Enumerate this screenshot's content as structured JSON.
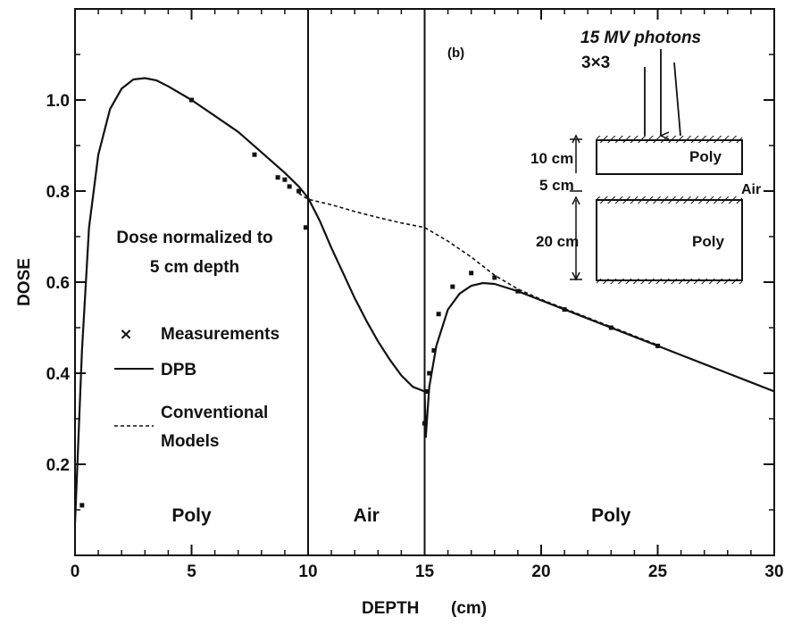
{
  "chart_data": {
    "type": "line",
    "xlabel": "DEPTH",
    "xunit": "(cm)",
    "ylabel": "DOSE",
    "panel_label": "(b)",
    "xlim": [
      0,
      30
    ],
    "ylim": [
      0,
      1.2
    ],
    "x_ticks": [
      0,
      5,
      10,
      15,
      20,
      25,
      30
    ],
    "y_ticks": [
      0.2,
      0.4,
      0.6,
      0.8,
      1.0
    ],
    "y_tick_labels": [
      "0.2",
      "0.4",
      "0.6",
      "0.8",
      "1.0"
    ],
    "boundaries": [
      10,
      15
    ],
    "regions": [
      {
        "label": "Poly",
        "x_center": 5
      },
      {
        "label": "Air",
        "x_center": 12.5
      },
      {
        "label": "Poly",
        "x_center": 23
      }
    ],
    "annotation": [
      "Dose normalized to",
      "5 cm depth"
    ],
    "legend": {
      "measurements": "Measurements",
      "dpb": "DPB",
      "conventional": [
        "Conventional",
        "Models"
      ]
    },
    "series": [
      {
        "name": "DPB",
        "style": "solid",
        "x": [
          0,
          0.3,
          0.6,
          1.0,
          1.5,
          2.0,
          2.5,
          3.0,
          3.5,
          4.0,
          5.0,
          6.0,
          7.0,
          8.0,
          9.0,
          9.6,
          10.0,
          10.5,
          11.0,
          11.5,
          12.0,
          12.5,
          13.0,
          13.5,
          14.0,
          14.5,
          15.0,
          15.05,
          15.2,
          15.5,
          16.0,
          16.5,
          17.0,
          17.5,
          18.0,
          19.0,
          20.0,
          21.0,
          22.0,
          23.0,
          24.0,
          25.0,
          26.0,
          27.0,
          28.0,
          29.0,
          30.0
        ],
        "y": [
          0.07,
          0.45,
          0.72,
          0.88,
          0.98,
          1.025,
          1.045,
          1.048,
          1.043,
          1.03,
          1.0,
          0.965,
          0.93,
          0.885,
          0.84,
          0.81,
          0.785,
          0.735,
          0.675,
          0.62,
          0.565,
          0.515,
          0.47,
          0.43,
          0.395,
          0.37,
          0.36,
          0.26,
          0.37,
          0.46,
          0.54,
          0.575,
          0.592,
          0.598,
          0.596,
          0.58,
          0.56,
          0.54,
          0.52,
          0.5,
          0.48,
          0.46,
          0.44,
          0.42,
          0.4,
          0.38,
          0.36
        ]
      },
      {
        "name": "Conventional Models",
        "style": "dashed",
        "x": [
          9.6,
          10.0,
          11.0,
          12.0,
          13.0,
          14.0,
          15.0,
          16.0,
          17.0,
          18.0,
          19.0,
          20.0,
          21.0,
          22.0,
          23.0,
          24.0,
          25.0
        ],
        "y": [
          0.795,
          0.782,
          0.77,
          0.755,
          0.742,
          0.73,
          0.72,
          0.69,
          0.655,
          0.615,
          0.585,
          0.562,
          0.542,
          0.522,
          0.502,
          0.482,
          0.462
        ]
      },
      {
        "name": "Measurements",
        "style": "points",
        "x": [
          0.3,
          5.0,
          7.7,
          8.7,
          9.0,
          9.2,
          9.6,
          9.9,
          15.0,
          15.1,
          15.2,
          15.4,
          15.6,
          16.2,
          17.0,
          18.0,
          19.0,
          21.0,
          23.0,
          25.0
        ],
        "y": [
          0.11,
          1.0,
          0.88,
          0.83,
          0.825,
          0.81,
          0.8,
          0.72,
          0.29,
          0.36,
          0.4,
          0.45,
          0.53,
          0.59,
          0.62,
          0.61,
          0.58,
          0.54,
          0.5,
          0.46
        ]
      }
    ]
  },
  "inset": {
    "title": "15 MV photons",
    "field": "3×3",
    "top_thickness": "10 cm",
    "gap_thickness": "5 cm",
    "bottom_thickness": "20 cm",
    "top_material": "Poly",
    "gap_material": "Air",
    "bottom_material": "Poly"
  }
}
